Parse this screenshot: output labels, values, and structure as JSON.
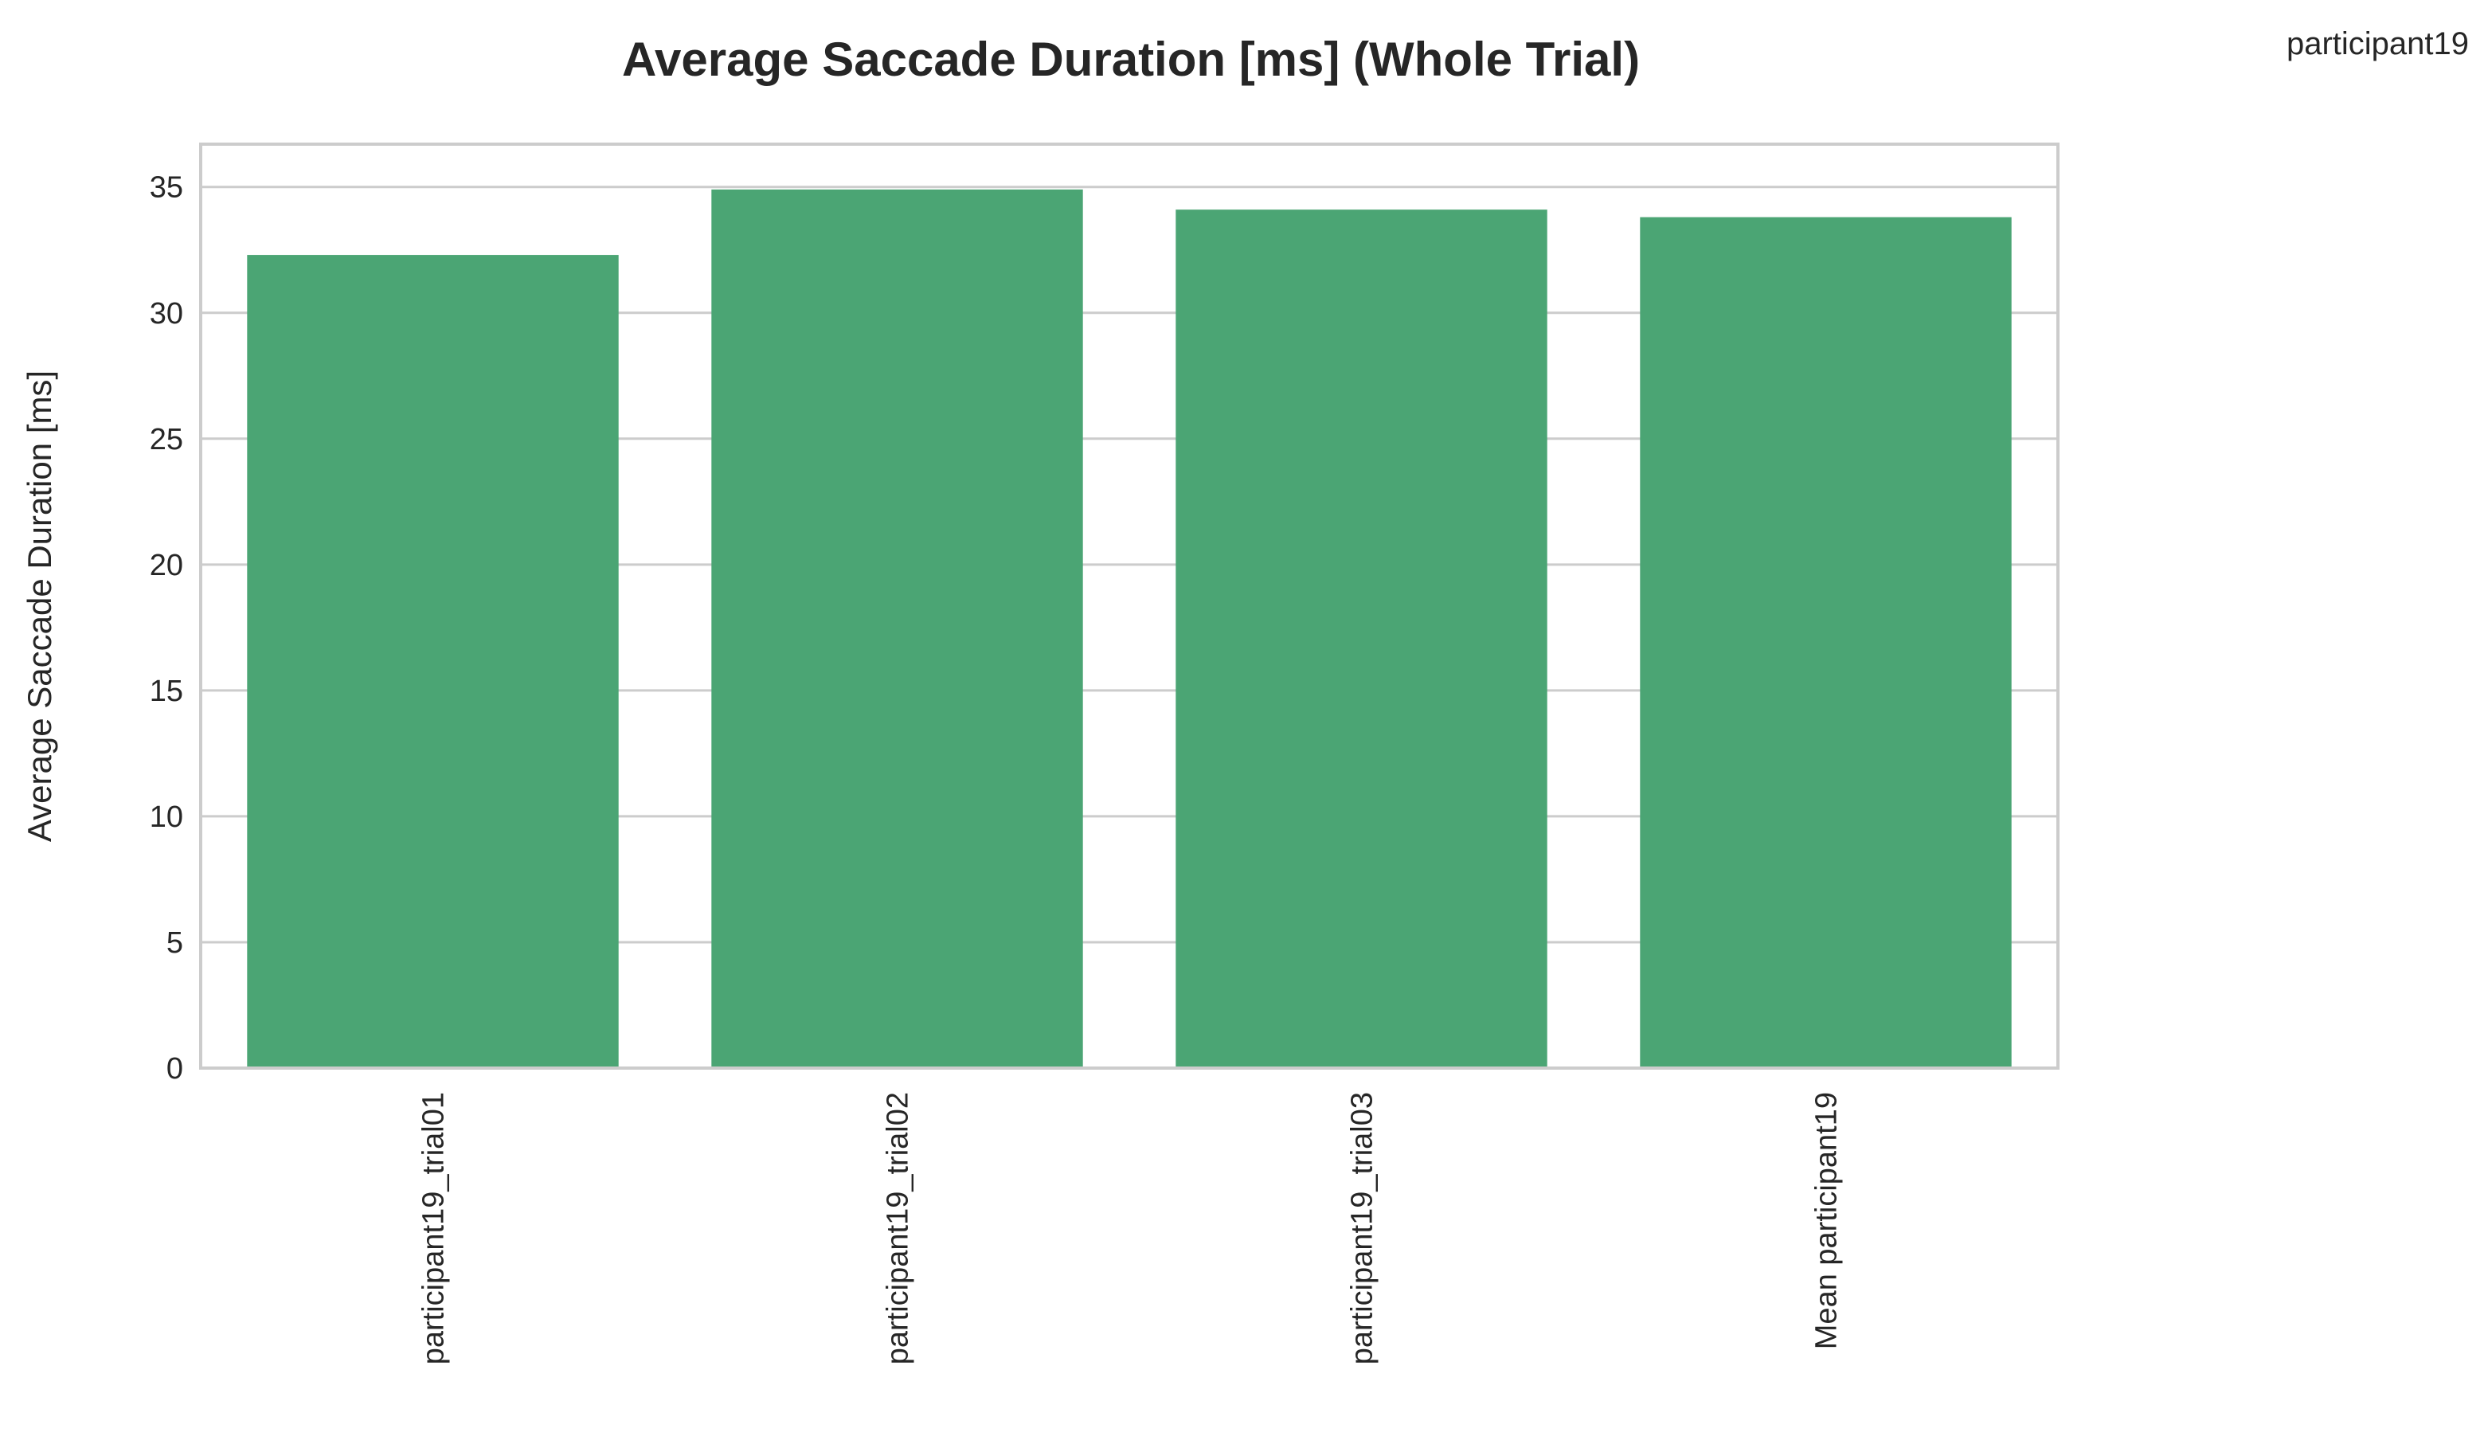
{
  "chart_data": {
    "type": "bar",
    "title": "Average Saccade Duration [ms] (Whole Trial)",
    "corner_label": "participant19",
    "xlabel": "",
    "ylabel": "Average Saccade Duration [ms]",
    "categories": [
      "participant19_trial01",
      "participant19_trial02",
      "participant19_trial03",
      "Mean participant19"
    ],
    "values": [
      32.3,
      34.9,
      34.1,
      33.8
    ],
    "ylim": [
      0,
      36.7
    ],
    "yticks": [
      0,
      5,
      10,
      15,
      20,
      25,
      30,
      35
    ],
    "grid": true,
    "colors": {
      "bar": "#4ba574",
      "grid": "#cccccc",
      "frame": "#cccccc",
      "text": "#262626"
    }
  }
}
